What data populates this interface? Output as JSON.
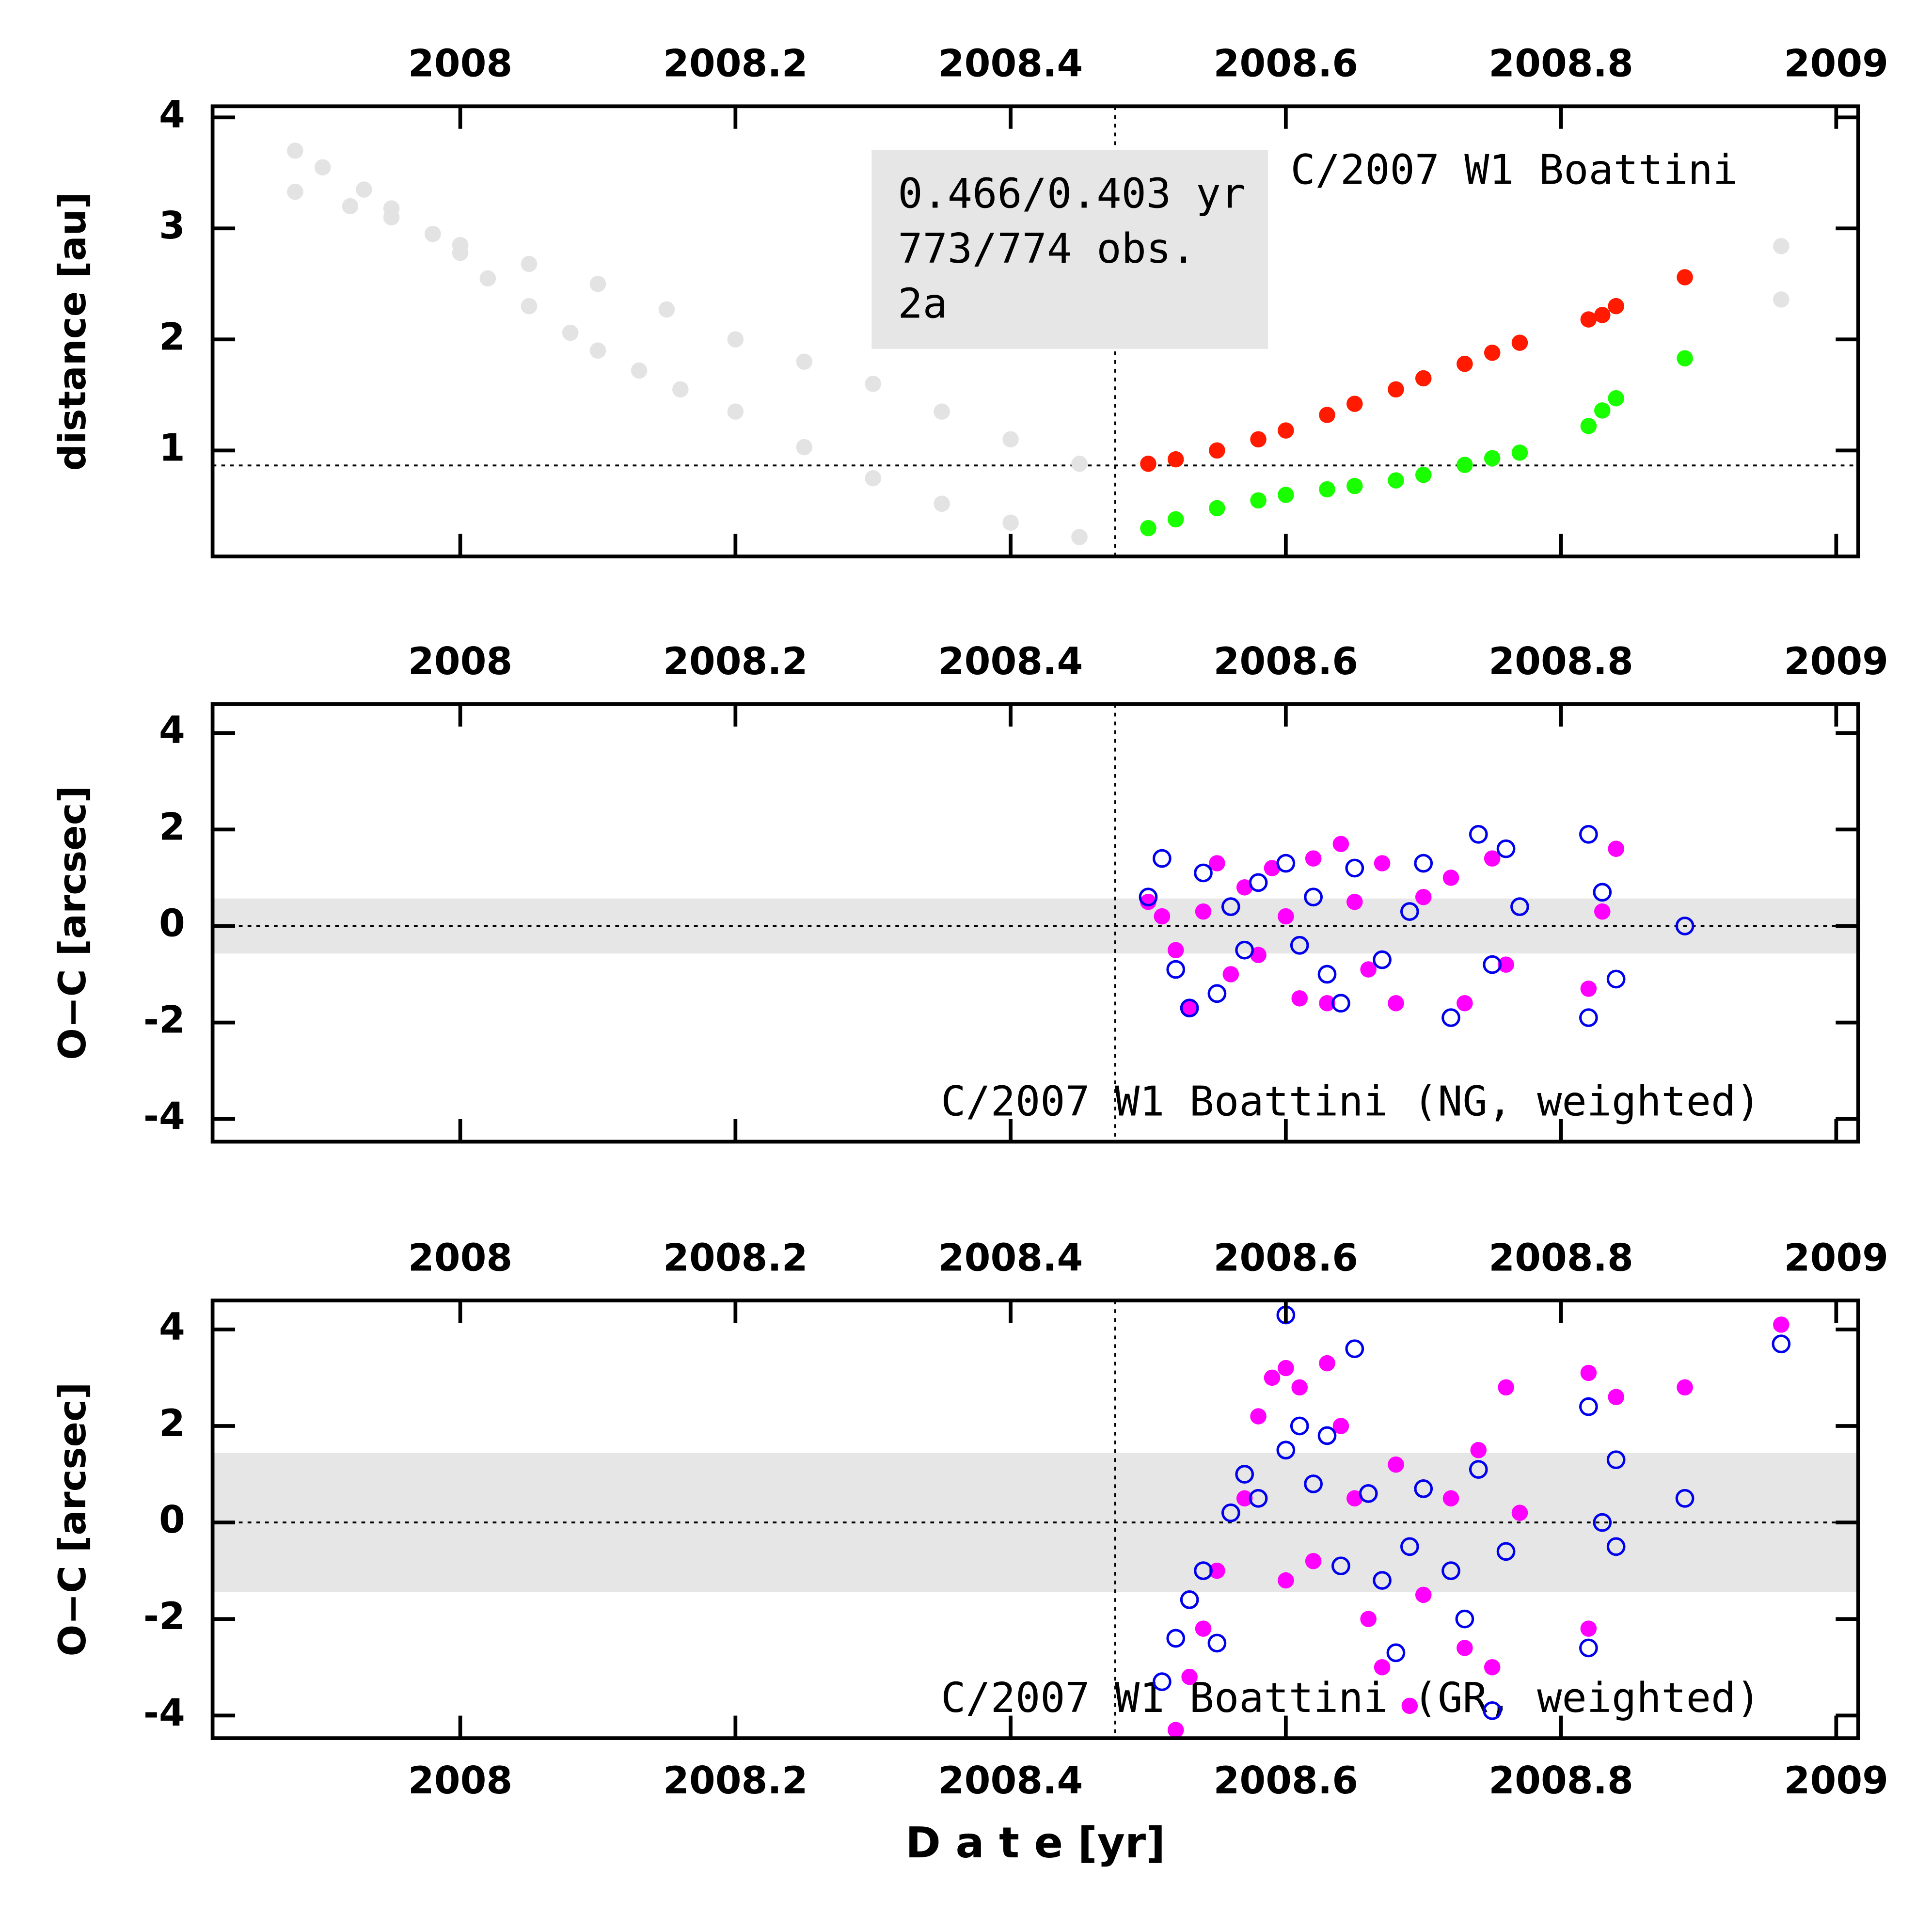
{
  "chart_data": [
    {
      "type": "scatter",
      "title": "C/2007 W1 Boattini",
      "annotation": [
        "0.466/0.403 yr",
        "773/774 obs.",
        "2a"
      ],
      "ylabel": "distance [au]",
      "xlim": [
        2007.82,
        2009.016
      ],
      "ylim": [
        0.045,
        4.1
      ],
      "xticks": [
        2008,
        2008.2,
        2008.4,
        2008.6,
        2008.8,
        2009
      ],
      "yticks": [
        1,
        2,
        3,
        4
      ],
      "hline": 0.865,
      "vline": 2008.476,
      "series": [
        {
          "color": "#e3e3e3",
          "marker": "filled",
          "x": [
            2007.88,
            2007.9,
            2007.93,
            2007.95,
            2007.98,
            2008.0,
            2008.02,
            2008.05,
            2008.08,
            2008.1,
            2008.13,
            2008.16,
            2008.2,
            2008.25,
            2008.3,
            2008.35,
            2008.4,
            2008.45
          ],
          "values": [
            3.7,
            3.55,
            3.35,
            3.18,
            2.95,
            2.78,
            2.55,
            2.3,
            2.06,
            1.9,
            1.72,
            1.55,
            1.35,
            1.03,
            0.75,
            0.52,
            0.35,
            0.22
          ]
        },
        {
          "color": "#e3e3e3",
          "marker": "filled",
          "x": [
            2007.88,
            2007.92,
            2007.95,
            2007.98,
            2008.0,
            2008.05,
            2008.1,
            2008.15,
            2008.2,
            2008.25,
            2008.3,
            2008.35,
            2008.4,
            2008.45,
            2008.96,
            2008.96
          ],
          "values": [
            3.33,
            3.2,
            3.1,
            2.95,
            2.85,
            2.68,
            2.5,
            2.27,
            2.0,
            1.8,
            1.6,
            1.35,
            1.1,
            0.88,
            2.84,
            2.36
          ]
        },
        {
          "color": "#ff1a00",
          "marker": "filled",
          "x": [
            2008.5,
            2008.52,
            2008.55,
            2008.58,
            2008.6,
            2008.63,
            2008.65,
            2008.68,
            2008.7,
            2008.73,
            2008.75,
            2008.77,
            2008.82,
            2008.83,
            2008.84,
            2008.89
          ],
          "values": [
            0.88,
            0.92,
            1.0,
            1.1,
            1.18,
            1.32,
            1.42,
            1.55,
            1.65,
            1.78,
            1.88,
            1.97,
            2.18,
            2.22,
            2.3,
            2.56
          ]
        },
        {
          "color": "#1aff00",
          "marker": "filled",
          "x": [
            2008.5,
            2008.52,
            2008.55,
            2008.58,
            2008.6,
            2008.63,
            2008.65,
            2008.68,
            2008.7,
            2008.73,
            2008.75,
            2008.77,
            2008.82,
            2008.83,
            2008.84,
            2008.89
          ],
          "values": [
            0.3,
            0.38,
            0.48,
            0.55,
            0.6,
            0.65,
            0.68,
            0.73,
            0.78,
            0.87,
            0.93,
            0.98,
            1.22,
            1.36,
            1.47,
            1.83
          ]
        }
      ]
    },
    {
      "type": "scatter",
      "title": "C/2007 W1 Boattini (NG, weighted)",
      "ylabel": "O−C [arcsec]",
      "xlim": [
        2007.82,
        2009.016
      ],
      "ylim": [
        -4.47,
        4.6
      ],
      "xticks": [
        2008,
        2008.2,
        2008.4,
        2008.6,
        2008.8,
        2009
      ],
      "yticks": [
        4,
        2,
        0,
        -2,
        -4
      ],
      "hline": 0,
      "vline": 2008.476,
      "band": [
        -0.57,
        0.57
      ],
      "series": [
        {
          "color": "#ff00ff",
          "marker": "filled",
          "x": [
            2008.5,
            2008.51,
            2008.52,
            2008.53,
            2008.54,
            2008.55,
            2008.56,
            2008.57,
            2008.58,
            2008.59,
            2008.6,
            2008.61,
            2008.62,
            2008.63,
            2008.64,
            2008.65,
            2008.66,
            2008.67,
            2008.68,
            2008.7,
            2008.72,
            2008.73,
            2008.75,
            2008.76,
            2008.82,
            2008.83,
            2008.84
          ],
          "values": [
            0.5,
            0.2,
            -0.5,
            -1.7,
            0.3,
            1.3,
            -1.0,
            0.8,
            -0.6,
            1.2,
            0.2,
            -1.5,
            1.4,
            -1.6,
            1.7,
            0.5,
            -0.9,
            1.3,
            -1.6,
            0.6,
            1.0,
            -1.6,
            1.4,
            -0.8,
            -1.3,
            0.3,
            1.6
          ]
        },
        {
          "color": "#0000ee",
          "marker": "open",
          "x": [
            2008.5,
            2008.51,
            2008.52,
            2008.53,
            2008.54,
            2008.55,
            2008.56,
            2008.57,
            2008.58,
            2008.6,
            2008.61,
            2008.62,
            2008.63,
            2008.64,
            2008.65,
            2008.67,
            2008.69,
            2008.7,
            2008.72,
            2008.74,
            2008.75,
            2008.76,
            2008.77,
            2008.82,
            2008.82,
            2008.83,
            2008.84,
            2008.89
          ],
          "values": [
            0.6,
            1.4,
            -0.9,
            -1.7,
            1.1,
            -1.4,
            0.4,
            -0.5,
            0.9,
            1.3,
            -0.4,
            0.6,
            -1.0,
            -1.6,
            1.2,
            -0.7,
            0.3,
            1.3,
            -1.9,
            1.9,
            -0.8,
            1.6,
            0.4,
            1.9,
            -1.9,
            0.7,
            -1.1,
            0.0
          ]
        }
      ]
    },
    {
      "type": "scatter",
      "title": "C/2007 W1 Boattini (GR, weighted)",
      "ylabel": "O−C [arcsec]",
      "xlabel": "D a t e [yr]",
      "xlim": [
        2007.82,
        2009.016
      ],
      "ylim": [
        -4.47,
        4.6
      ],
      "xticks": [
        2008,
        2008.2,
        2008.4,
        2008.6,
        2008.8,
        2009
      ],
      "yticks": [
        4,
        2,
        0,
        -2,
        -4
      ],
      "hline": 0,
      "vline": 2008.476,
      "band": [
        -1.44,
        1.44
      ],
      "series": [
        {
          "color": "#ff00ff",
          "marker": "filled",
          "x": [
            2008.52,
            2008.53,
            2008.54,
            2008.55,
            2008.57,
            2008.58,
            2008.59,
            2008.6,
            2008.6,
            2008.61,
            2008.62,
            2008.63,
            2008.64,
            2008.65,
            2008.66,
            2008.67,
            2008.68,
            2008.69,
            2008.7,
            2008.72,
            2008.73,
            2008.74,
            2008.75,
            2008.76,
            2008.77,
            2008.82,
            2008.82,
            2008.84,
            2008.89,
            2008.96
          ],
          "values": [
            -4.3,
            -3.2,
            -2.2,
            -1.0,
            0.5,
            2.2,
            3.0,
            3.2,
            -1.2,
            2.8,
            -0.8,
            3.3,
            2.0,
            0.5,
            -2.0,
            -3.0,
            1.2,
            -3.8,
            -1.5,
            0.5,
            -2.6,
            1.5,
            -3.0,
            2.8,
            0.2,
            3.1,
            -2.2,
            2.6,
            2.8,
            4.1
          ]
        },
        {
          "color": "#0000ee",
          "marker": "open",
          "x": [
            2008.51,
            2008.52,
            2008.53,
            2008.54,
            2008.55,
            2008.56,
            2008.57,
            2008.58,
            2008.6,
            2008.6,
            2008.61,
            2008.62,
            2008.63,
            2008.64,
            2008.65,
            2008.66,
            2008.67,
            2008.68,
            2008.69,
            2008.7,
            2008.72,
            2008.73,
            2008.74,
            2008.75,
            2008.76,
            2008.82,
            2008.82,
            2008.83,
            2008.84,
            2008.84,
            2008.89,
            2008.96
          ],
          "values": [
            -3.3,
            -2.4,
            -1.6,
            -1.0,
            -2.5,
            0.2,
            1.0,
            0.5,
            4.3,
            1.5,
            2.0,
            0.8,
            1.8,
            -0.9,
            3.6,
            0.6,
            -1.2,
            -2.7,
            -0.5,
            0.7,
            -1.0,
            -2.0,
            1.1,
            -3.9,
            -0.6,
            2.4,
            -2.6,
            0.0,
            1.3,
            -0.5,
            0.5,
            3.7
          ]
        }
      ]
    }
  ]
}
